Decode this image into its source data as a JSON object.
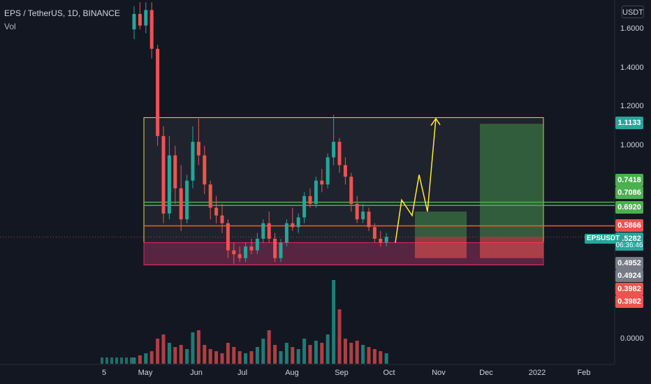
{
  "header": {
    "title": "EPS / TetherUS, 1D, BINANCE",
    "indicator": "Vol",
    "scale_button": "USDT"
  },
  "colors": {
    "background": "#131722",
    "up": "#26a69a",
    "down": "#ef5350",
    "range_box": "#f2d34b",
    "support_zone": "#7b1d3e",
    "target_zone": "#2e7d32",
    "stop_zone": "#c62828",
    "resistance_line": "#4caf50",
    "level_line": "#ff5722",
    "projection": "#ffeb3b"
  },
  "price_labels": [
    {
      "text": "1.1133",
      "value": 1.1133,
      "color": "#26a69a"
    },
    {
      "text": "0.7418",
      "value": 0.7418,
      "color": "#4caf50"
    },
    {
      "text": "0.7086",
      "value": 0.7086,
      "color": "#4caf50"
    },
    {
      "text": "0.6920",
      "value": 0.692,
      "color": "#4caf50"
    },
    {
      "text": "0.5866",
      "value": 0.5866,
      "color": "#ef5350"
    },
    {
      "text": "0.5282",
      "value": 0.5282,
      "color": "#26a69a"
    },
    {
      "text": "0.4952",
      "value": 0.4952,
      "color": "#787b86"
    },
    {
      "text": "0.4924",
      "value": 0.4924,
      "color": "#787b86"
    },
    {
      "text": "0.3982",
      "value": 0.3982,
      "color": "#ef5350"
    },
    {
      "text": "0.3982",
      "value": 0.3982,
      "color": "#ef5350"
    }
  ],
  "symbol_badge": "EPSUSDT",
  "countdown": "06:36:46",
  "chart_data": {
    "type": "candlestick",
    "title": "EPS / TetherUS, 1D, BINANCE",
    "yaxis": {
      "ticks": [
        "1.6000",
        "1.4000",
        "1.2000",
        "1.0000",
        "0.0000"
      ],
      "tick_values": [
        1.6,
        1.4,
        1.2,
        1.0,
        0.0
      ]
    },
    "xaxis": {
      "ticks": [
        "5",
        "May",
        "Jun",
        "Jul",
        "Aug",
        "Sep",
        "Oct",
        "Nov",
        "Dec",
        "2022",
        "Feb"
      ]
    },
    "ylim": [
      0.0,
      1.75
    ],
    "grid": false,
    "series": [
      {
        "name": "Price",
        "values": [
          [
            1.6,
            1.72,
            1.55,
            1.68
          ],
          [
            1.68,
            1.75,
            1.6,
            1.62
          ],
          [
            1.62,
            1.74,
            1.58,
            1.7
          ],
          [
            1.7,
            1.74,
            1.45,
            1.5
          ],
          [
            1.5,
            1.52,
            1.0,
            1.05
          ],
          [
            1.05,
            1.1,
            0.6,
            0.65
          ],
          [
            0.65,
            1.05,
            0.62,
            0.95
          ],
          [
            0.95,
            1.0,
            0.7,
            0.78
          ],
          [
            0.78,
            0.9,
            0.56,
            0.62
          ],
          [
            0.62,
            0.85,
            0.6,
            0.82
          ],
          [
            0.82,
            1.1,
            0.78,
            1.02
          ],
          [
            1.02,
            1.14,
            0.9,
            0.95
          ],
          [
            0.95,
            1.0,
            0.75,
            0.8
          ],
          [
            0.8,
            0.82,
            0.62,
            0.68
          ],
          [
            0.68,
            0.74,
            0.6,
            0.64
          ],
          [
            0.64,
            0.7,
            0.55,
            0.6
          ],
          [
            0.6,
            0.62,
            0.42,
            0.46
          ],
          [
            0.46,
            0.5,
            0.39,
            0.44
          ],
          [
            0.44,
            0.48,
            0.4,
            0.42
          ],
          [
            0.42,
            0.5,
            0.4,
            0.48
          ],
          [
            0.48,
            0.52,
            0.44,
            0.46
          ],
          [
            0.46,
            0.55,
            0.44,
            0.52
          ],
          [
            0.52,
            0.62,
            0.5,
            0.6
          ],
          [
            0.6,
            0.66,
            0.5,
            0.52
          ],
          [
            0.52,
            0.55,
            0.4,
            0.42
          ],
          [
            0.42,
            0.52,
            0.4,
            0.5
          ],
          [
            0.5,
            0.62,
            0.48,
            0.6
          ],
          [
            0.6,
            0.68,
            0.56,
            0.58
          ],
          [
            0.58,
            0.65,
            0.55,
            0.63
          ],
          [
            0.63,
            0.76,
            0.6,
            0.74
          ],
          [
            0.74,
            0.78,
            0.68,
            0.7
          ],
          [
            0.7,
            0.84,
            0.68,
            0.82
          ],
          [
            0.82,
            0.88,
            0.76,
            0.8
          ],
          [
            0.8,
            0.96,
            0.78,
            0.94
          ],
          [
            0.94,
            1.16,
            0.9,
            1.02
          ],
          [
            1.02,
            1.04,
            0.86,
            0.9
          ],
          [
            0.9,
            0.94,
            0.8,
            0.84
          ],
          [
            0.84,
            0.86,
            0.66,
            0.7
          ],
          [
            0.7,
            0.74,
            0.6,
            0.62
          ],
          [
            0.62,
            0.7,
            0.6,
            0.66
          ],
          [
            0.66,
            0.68,
            0.56,
            0.58
          ],
          [
            0.58,
            0.6,
            0.5,
            0.52
          ],
          [
            0.52,
            0.56,
            0.48,
            0.5
          ],
          [
            0.5,
            0.55,
            0.48,
            0.53
          ]
        ]
      },
      {
        "name": "Vol",
        "values": [
          3,
          4,
          5,
          6,
          12,
          14,
          10,
          8,
          9,
          7,
          15,
          16,
          9,
          7,
          6,
          5,
          10,
          8,
          6,
          5,
          6,
          8,
          12,
          16,
          9,
          6,
          10,
          8,
          7,
          12,
          9,
          11,
          10,
          14,
          40,
          26,
          12,
          10,
          11,
          9,
          8,
          7,
          6,
          5
        ]
      }
    ],
    "zones": {
      "range_top": 1.145,
      "range_bottom": 0.385,
      "support_top": 0.5,
      "support_bottom": 0.385,
      "resistance_lines": [
        0.7418,
        0.7086,
        0.692
      ],
      "level_line": 0.5866
    },
    "projection_path": [
      [
        0,
        0.5
      ],
      [
        1,
        0.72
      ],
      [
        2,
        0.64
      ],
      [
        3,
        0.82
      ],
      [
        4,
        0.66
      ],
      [
        5,
        1.14
      ]
    ]
  }
}
